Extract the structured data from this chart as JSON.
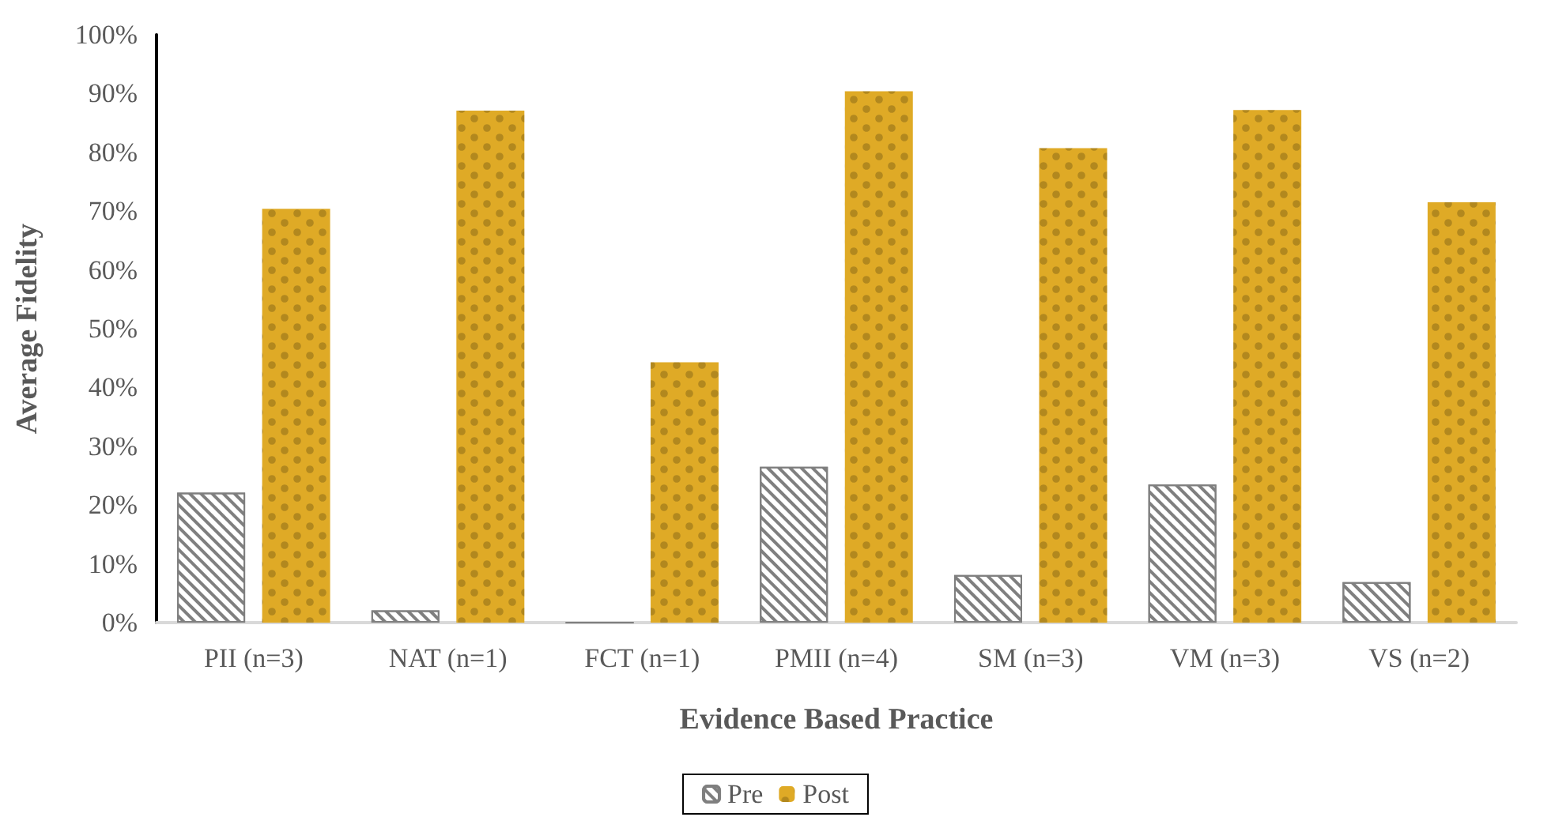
{
  "chart_data": {
    "type": "bar",
    "xlabel": "Evidence Based Practice",
    "ylabel": "Average Fidelity",
    "categories": [
      "PII (n=3)",
      "NAT (n=1)",
      "FCT (n=1)",
      "PMII (n=4)",
      "SM (n=3)",
      "VM (n=3)",
      "VS (n=2)"
    ],
    "series": [
      {
        "name": "Pre",
        "color": "#7f7f7f",
        "values": [
          22.1,
          2.1,
          0,
          26.5,
          8.1,
          23.5,
          6.9
        ]
      },
      {
        "name": "Post",
        "color": "#dfaa26",
        "values": [
          70.4,
          87.1,
          44.3,
          90.4,
          80.7,
          87.2,
          71.5
        ]
      }
    ],
    "ylim": [
      0,
      100
    ],
    "yticks": [
      {
        "value": 0,
        "label": "0%"
      },
      {
        "value": 10,
        "label": "10%"
      },
      {
        "value": 20,
        "label": "20%"
      },
      {
        "value": 30,
        "label": "30%"
      },
      {
        "value": 40,
        "label": "40%"
      },
      {
        "value": 50,
        "label": "50%"
      },
      {
        "value": 60,
        "label": "60%"
      },
      {
        "value": 70,
        "label": "70%"
      },
      {
        "value": 80,
        "label": "80%"
      },
      {
        "value": 90,
        "label": "90%"
      },
      {
        "value": 100,
        "label": "100%"
      }
    ],
    "grid": false,
    "legend": "bottom"
  }
}
